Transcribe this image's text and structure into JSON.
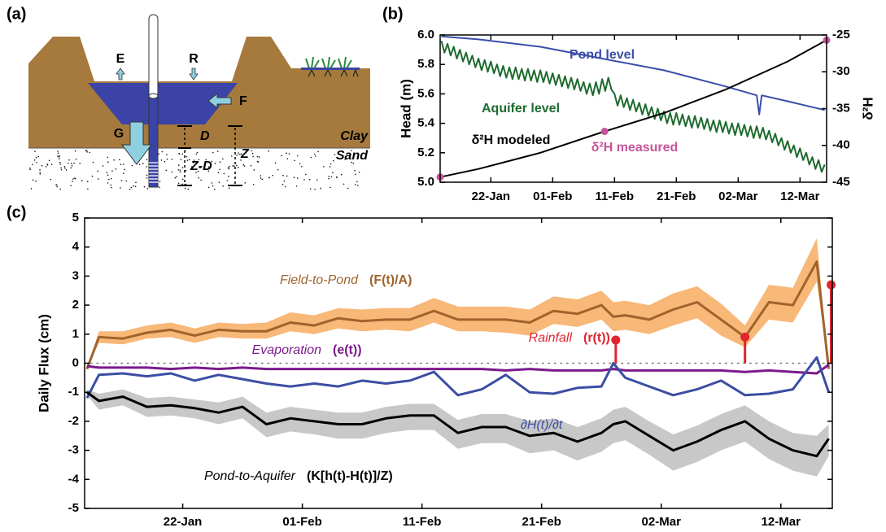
{
  "diagram": {
    "panel_label": "(a)",
    "labels": [
      "E",
      "R",
      "F",
      "G",
      "D",
      "Z-D",
      "Z",
      "Clay",
      "Sand"
    ]
  },
  "chart_data": [
    {
      "type": "line",
      "panel_label": "(b)",
      "ylabel": "Head (m)",
      "y2label": "δ²H",
      "xlim": [
        13.8,
        76.3
      ],
      "xticks": [
        {
          "value": 22,
          "label": "22-Jan"
        },
        {
          "value": 32,
          "label": "01-Feb"
        },
        {
          "value": 42,
          "label": "11-Feb"
        },
        {
          "value": 52,
          "label": "21-Feb"
        },
        {
          "value": 62,
          "label": "02-Mar"
        },
        {
          "value": 72,
          "label": "12-Mar"
        }
      ],
      "ylim": [
        5,
        6
      ],
      "yticks": [
        {
          "value": 5,
          "label": "5.0"
        },
        5.2,
        5.4,
        5.6,
        5.8,
        {
          "value": 6,
          "label": "6.0"
        }
      ],
      "y2lim": [
        -45,
        -25
      ],
      "y2ticks": [
        -45,
        -40,
        -35,
        -30,
        -25
      ],
      "series": [
        {
          "name": "Pond level",
          "color": "#3a4ea8",
          "style": "line",
          "x": [
            14,
            20,
            30,
            40,
            50,
            60,
            65,
            65.4,
            65.8,
            70,
            76
          ],
          "values": [
            5.99,
            5.97,
            5.92,
            5.84,
            5.76,
            5.65,
            5.59,
            5.46,
            5.59,
            5.55,
            5.49
          ]
        },
        {
          "name": "Aquifer level",
          "color": "#1e6b2e",
          "style": "line",
          "x": [
            14,
            14.5,
            15,
            15.5,
            16,
            16.5,
            17,
            17.5,
            18,
            18.5,
            19,
            19.5,
            20,
            20.5,
            21,
            21.5,
            22,
            22.5,
            23,
            23.5,
            24,
            24.5,
            25,
            25.5,
            26,
            26.5,
            27,
            27.5,
            28,
            28.5,
            29,
            29.5,
            30,
            30.5,
            31,
            31.5,
            32,
            32.5,
            33,
            33.5,
            34,
            34.5,
            35,
            35.5,
            36,
            36.5,
            37,
            37.5,
            38,
            38.5,
            39,
            39.5,
            40,
            40.5,
            41,
            41.5,
            42,
            42.5,
            43,
            43.5,
            44,
            44.5,
            45,
            45.5,
            46,
            46.5,
            47,
            47.5,
            48,
            48.5,
            49,
            49.5,
            50,
            50.5,
            51,
            51.5,
            52,
            52.5,
            53,
            53.5,
            54,
            54.5,
            55,
            55.5,
            56,
            56.5,
            57,
            57.5,
            58,
            58.5,
            59,
            59.5,
            60,
            60.5,
            61,
            61.5,
            62,
            62.5,
            63,
            63.5,
            64,
            64.5,
            65,
            65.5,
            66,
            66.5,
            67,
            67.5,
            68,
            68.5,
            69,
            69.5,
            70,
            70.5,
            71,
            71.5,
            72,
            72.5,
            73,
            73.5,
            74,
            74.5,
            75,
            75.5,
            76
          ],
          "values": [
            5.96,
            5.88,
            5.94,
            5.86,
            5.92,
            5.84,
            5.9,
            5.82,
            5.88,
            5.8,
            5.86,
            5.78,
            5.84,
            5.76,
            5.83,
            5.75,
            5.82,
            5.74,
            5.8,
            5.72,
            5.79,
            5.71,
            5.78,
            5.7,
            5.78,
            5.7,
            5.77,
            5.69,
            5.77,
            5.69,
            5.76,
            5.68,
            5.76,
            5.68,
            5.75,
            5.67,
            5.74,
            5.66,
            5.73,
            5.65,
            5.72,
            5.64,
            5.71,
            5.63,
            5.7,
            5.62,
            5.68,
            5.6,
            5.67,
            5.59,
            5.68,
            5.6,
            5.7,
            5.62,
            5.71,
            5.63,
            5.6,
            5.52,
            5.59,
            5.51,
            5.57,
            5.49,
            5.56,
            5.48,
            5.54,
            5.46,
            5.53,
            5.45,
            5.51,
            5.43,
            5.5,
            5.42,
            5.48,
            5.4,
            5.47,
            5.39,
            5.47,
            5.39,
            5.46,
            5.38,
            5.45,
            5.37,
            5.45,
            5.37,
            5.44,
            5.36,
            5.43,
            5.35,
            5.42,
            5.34,
            5.42,
            5.34,
            5.41,
            5.33,
            5.4,
            5.32,
            5.4,
            5.32,
            5.39,
            5.31,
            5.38,
            5.3,
            5.38,
            5.3,
            5.37,
            5.29,
            5.35,
            5.27,
            5.33,
            5.25,
            5.3,
            5.22,
            5.28,
            5.2,
            5.25,
            5.17,
            5.23,
            5.15,
            5.2,
            5.12,
            5.17,
            5.09,
            5.15,
            5.07,
            5.12
          ]
        },
        {
          "name": "δ²H modeled",
          "color": "#000000",
          "style": "line",
          "axis": "y2",
          "x": [
            13.8,
            20,
            30,
            40,
            50,
            60,
            70,
            76.3
          ],
          "values": [
            -44.3,
            -43.2,
            -41.0,
            -38.2,
            -35.6,
            -32.4,
            -28.6,
            -25.7
          ]
        },
        {
          "name": "δ²H measured",
          "color": "#c8549a",
          "style": "markers",
          "axis": "y2",
          "x": [
            13.8,
            40.4,
            76.3
          ],
          "values": [
            -44.3,
            -38.1,
            -25.7
          ]
        }
      ]
    },
    {
      "type": "line",
      "panel_label": "(c)",
      "ylabel": "Daily Flux (cm)",
      "xlim": [
        13.8,
        76.3
      ],
      "xticks": [
        {
          "value": 22,
          "label": "22-Jan"
        },
        {
          "value": 32,
          "label": "01-Feb"
        },
        {
          "value": 42,
          "label": "11-Feb"
        },
        {
          "value": 52,
          "label": "21-Feb"
        },
        {
          "value": 62,
          "label": "02-Mar"
        },
        {
          "value": 72,
          "label": "12-Mar"
        }
      ],
      "ylim": [
        -5,
        5
      ],
      "yticks": [
        -5,
        -4,
        -3,
        -2,
        -1,
        0,
        1,
        2,
        3,
        4,
        5
      ],
      "zero_line": true,
      "x": [
        14,
        15,
        17,
        19,
        21,
        23,
        25,
        27,
        29,
        31,
        33,
        35,
        37,
        39,
        41,
        43,
        45,
        47,
        49,
        51,
        53,
        55,
        57,
        58,
        59,
        61,
        63,
        65,
        67,
        69,
        71,
        73,
        75,
        76
      ],
      "series": [
        {
          "name": "Field-to-Pond",
          "formula": "(F(t)/A)",
          "color": "#a0632c",
          "band_color": "#f8b878",
          "style": "line",
          "values": [
            -0.2,
            0.9,
            0.85,
            1.05,
            1.15,
            0.95,
            1.15,
            1.1,
            1.1,
            1.4,
            1.3,
            1.55,
            1.45,
            1.5,
            1.5,
            1.8,
            1.5,
            1.5,
            1.5,
            1.4,
            1.8,
            1.7,
            2.0,
            1.6,
            1.65,
            1.5,
            1.85,
            2.1,
            1.5,
            0.9,
            2.1,
            2.0,
            3.5,
            -0.2
          ],
          "upper": [
            -0.2,
            1.1,
            1.1,
            1.3,
            1.4,
            1.2,
            1.4,
            1.35,
            1.4,
            1.75,
            1.65,
            1.9,
            1.85,
            1.9,
            1.9,
            2.25,
            1.95,
            1.95,
            1.95,
            1.85,
            2.3,
            2.2,
            2.5,
            2.1,
            2.15,
            2.0,
            2.4,
            2.65,
            2.05,
            1.3,
            2.7,
            2.6,
            4.3,
            -0.2
          ],
          "lower": [
            -0.2,
            0.7,
            0.65,
            0.85,
            0.9,
            0.7,
            0.9,
            0.85,
            0.85,
            1.1,
            1.0,
            1.2,
            1.1,
            1.15,
            1.1,
            1.4,
            1.1,
            1.1,
            1.05,
            0.95,
            1.35,
            1.25,
            1.5,
            1.1,
            1.15,
            1.0,
            1.3,
            1.55,
            0.95,
            0.55,
            1.5,
            1.4,
            2.8,
            -0.2
          ]
        },
        {
          "name": "Evaporation",
          "formula": "(e(t))",
          "color": "#7b1a8c",
          "style": "line",
          "values": [
            -0.1,
            -0.15,
            -0.15,
            -0.15,
            -0.2,
            -0.15,
            -0.2,
            -0.15,
            -0.2,
            -0.2,
            -0.2,
            -0.2,
            -0.2,
            -0.2,
            -0.2,
            -0.2,
            -0.2,
            -0.2,
            -0.25,
            -0.2,
            -0.25,
            -0.25,
            -0.25,
            -0.2,
            -0.25,
            -0.25,
            -0.25,
            -0.25,
            -0.25,
            -0.3,
            -0.25,
            -0.3,
            -0.35,
            -0.05
          ]
        },
        {
          "name": "∂H(t)/∂t",
          "color": "#3b4ea3",
          "style": "line",
          "values": [
            -1.2,
            -0.4,
            -0.35,
            -0.45,
            -0.35,
            -0.6,
            -0.4,
            -0.55,
            -0.7,
            -0.8,
            -0.7,
            -0.8,
            -0.6,
            -0.7,
            -0.6,
            -0.3,
            -1.1,
            -0.9,
            -0.4,
            -1.0,
            -1.05,
            -0.85,
            -0.8,
            0.0,
            -0.5,
            -0.8,
            -1.1,
            -0.9,
            -0.6,
            -1.1,
            -1.05,
            -0.9,
            0.2,
            -1.0
          ]
        },
        {
          "name": "Pond-to-Aquifer",
          "formula": "(K[h(t)-H(t)]/Z)",
          "color": "#000000",
          "band_color": "#c8c8c8",
          "style": "line",
          "values": [
            -1.0,
            -1.3,
            -1.15,
            -1.5,
            -1.45,
            -1.55,
            -1.7,
            -1.5,
            -2.1,
            -1.9,
            -2.0,
            -2.1,
            -2.1,
            -1.9,
            -1.8,
            -1.8,
            -2.4,
            -2.2,
            -2.2,
            -2.5,
            -2.4,
            -2.7,
            -2.4,
            -2.1,
            -2.0,
            -2.5,
            -3.0,
            -2.7,
            -2.3,
            -2.0,
            -2.6,
            -3.0,
            -3.2,
            -2.6
          ],
          "upper": [
            -0.9,
            -1.05,
            -0.9,
            -1.2,
            -1.15,
            -1.25,
            -1.35,
            -1.15,
            -1.7,
            -1.5,
            -1.6,
            -1.7,
            -1.7,
            -1.5,
            -1.4,
            -1.4,
            -1.95,
            -1.75,
            -1.75,
            -2.0,
            -1.9,
            -2.2,
            -1.9,
            -1.6,
            -1.5,
            -2.0,
            -2.45,
            -2.15,
            -1.75,
            -1.45,
            -2.0,
            -2.4,
            -2.5,
            -2.1
          ],
          "lower": [
            -1.1,
            -1.6,
            -1.45,
            -1.85,
            -1.8,
            -1.9,
            -2.1,
            -1.9,
            -2.55,
            -2.35,
            -2.45,
            -2.6,
            -2.6,
            -2.4,
            -2.3,
            -2.3,
            -2.95,
            -2.75,
            -2.75,
            -3.1,
            -3.0,
            -3.35,
            -3.05,
            -2.75,
            -2.65,
            -3.15,
            -3.7,
            -3.4,
            -3.0,
            -2.7,
            -3.3,
            -3.7,
            -3.9,
            -3.2
          ]
        },
        {
          "name": "Rainfall",
          "formula": "(r(t))",
          "color": "#e0252f",
          "style": "stem",
          "x": [
            58.2,
            69,
            76.2
          ],
          "values": [
            0.8,
            0.9,
            2.7
          ]
        }
      ]
    }
  ]
}
